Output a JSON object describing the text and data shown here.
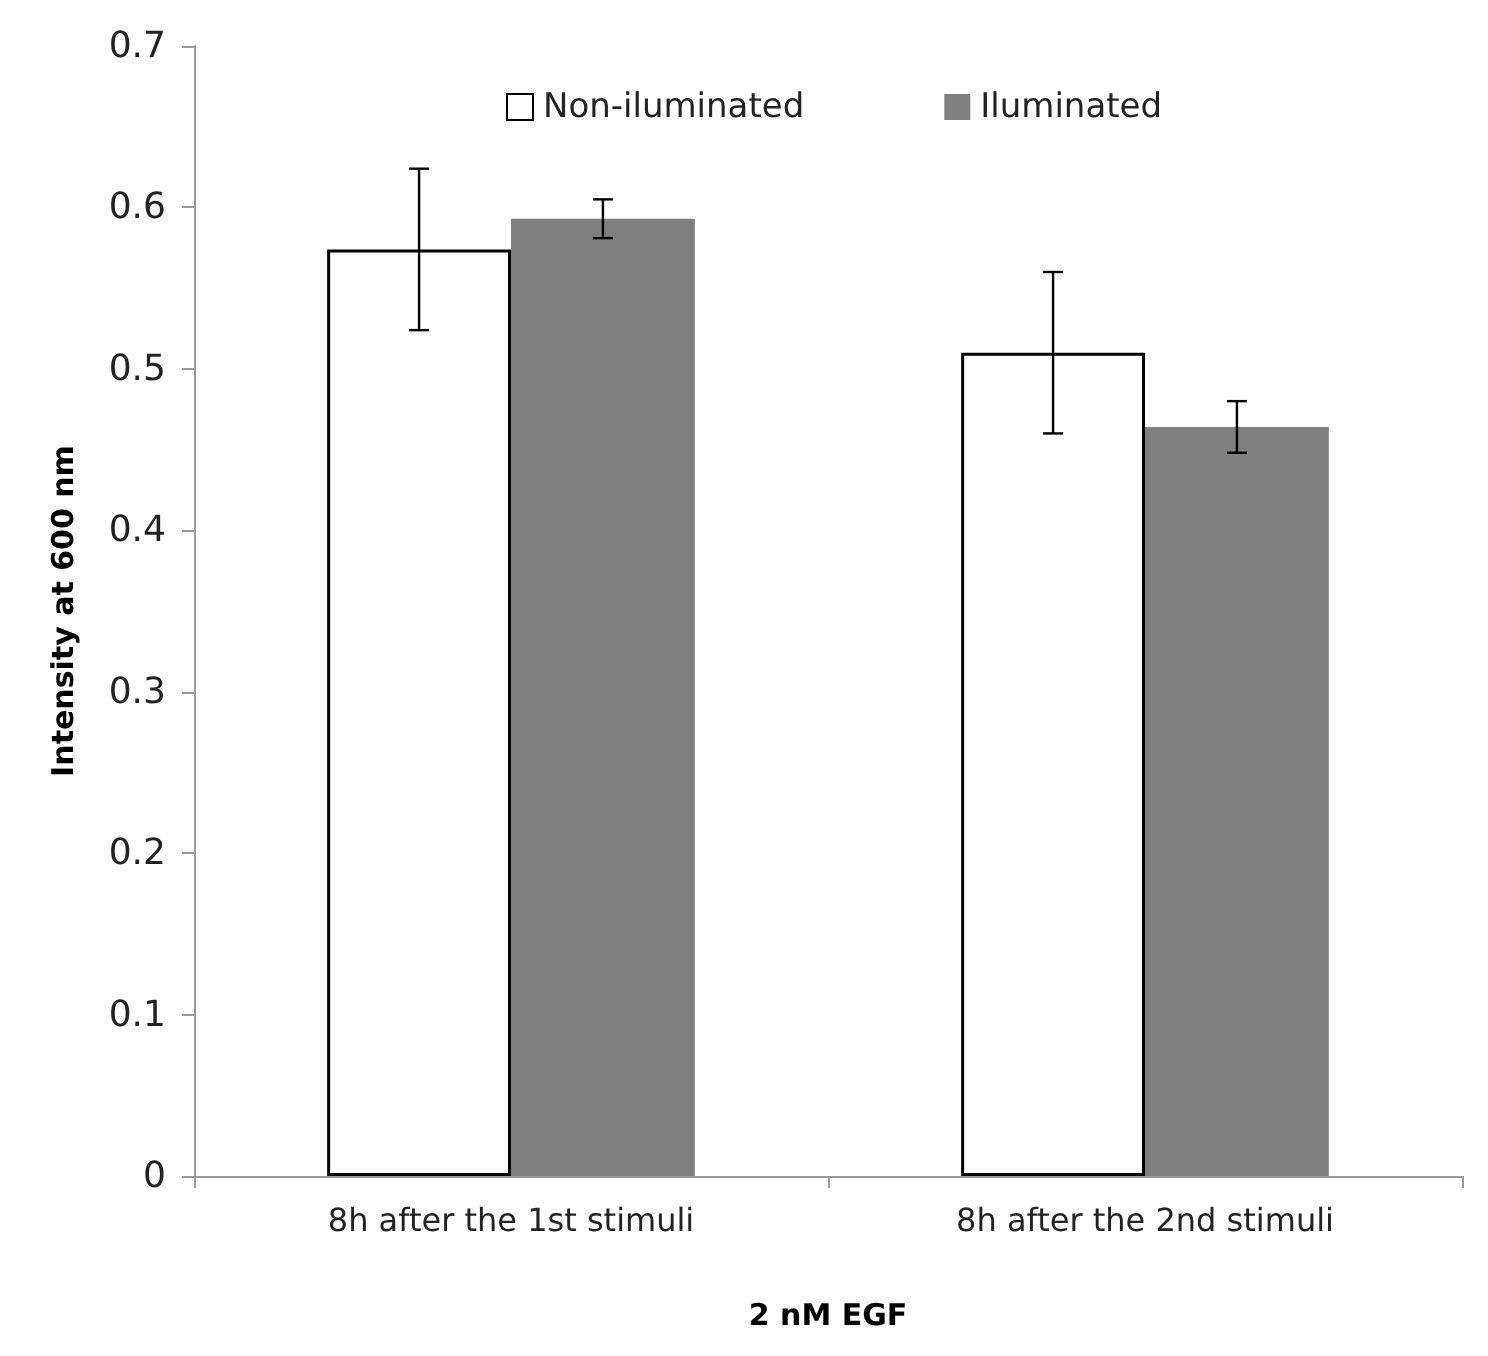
{
  "chart_data": {
    "type": "bar",
    "xlabel": "2 nM EGF",
    "ylabel": "Intensity at 600 nm",
    "categories": [
      "8h after the 1st stimuli",
      "8h after the 2nd stimuli"
    ],
    "series": [
      {
        "name": "Non-iluminated",
        "color": "#ffffff",
        "values": [
          0.574,
          0.51
        ],
        "errors": [
          0.05,
          0.05
        ]
      },
      {
        "name": "Iluminated",
        "color": "#808080",
        "values": [
          0.593,
          0.464
        ],
        "errors": [
          0.012,
          0.016
        ]
      }
    ],
    "ylim": [
      0,
      0.7
    ],
    "yticks": [
      0,
      0.1,
      0.2,
      0.3,
      0.4,
      0.5,
      0.6,
      0.7
    ],
    "grid": false,
    "legend": "top"
  }
}
